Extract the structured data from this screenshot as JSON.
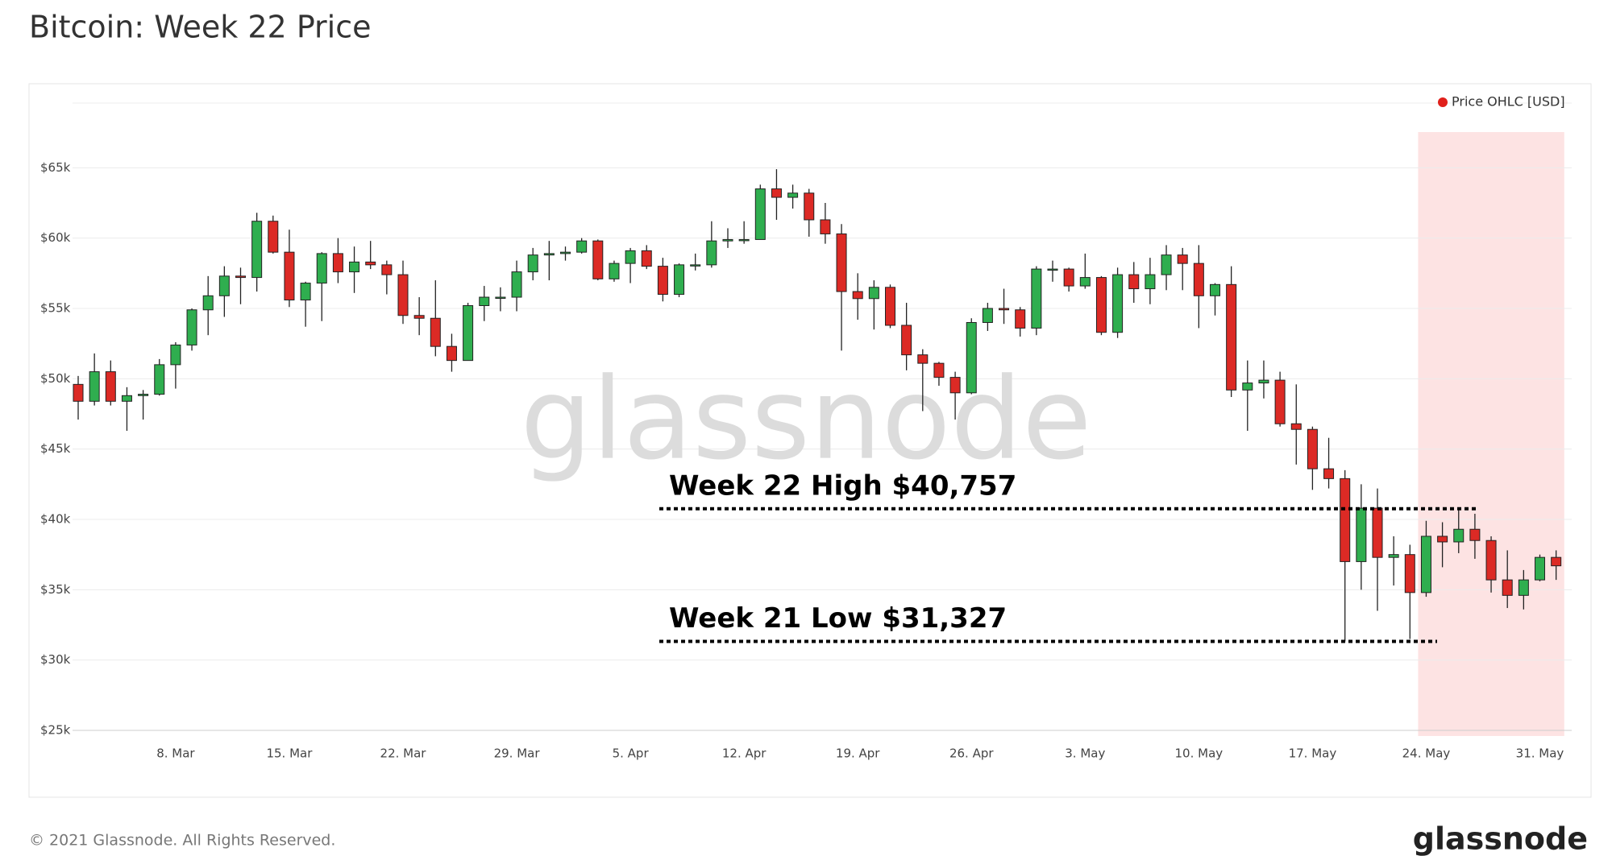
{
  "chart_data": {
    "type": "candlestick",
    "title": "Bitcoin: Week 22 Price",
    "categories": [
      null,
      null,
      null,
      null,
      null,
      null,
      "8. Mar",
      null,
      null,
      null,
      null,
      null,
      null,
      "15. Mar",
      null,
      null,
      null,
      null,
      null,
      null,
      "22. Mar",
      null,
      null,
      null,
      null,
      null,
      null,
      "29. Mar",
      null,
      null,
      null,
      null,
      null,
      null,
      "5. Apr",
      null,
      null,
      null,
      null,
      null,
      null,
      "12. Apr",
      null,
      null,
      null,
      null,
      null,
      null,
      "19. Apr",
      null,
      null,
      null,
      null,
      null,
      null,
      "26. Apr",
      null,
      null,
      null,
      null,
      null,
      null,
      "3. May",
      null,
      null,
      null,
      null,
      null,
      null,
      "10. May",
      null,
      null,
      null,
      null,
      null,
      null,
      "17. May",
      null,
      null,
      null,
      null,
      null,
      null,
      "24. May",
      null,
      null,
      null,
      null,
      null,
      null,
      "31. May",
      null
    ],
    "series": [
      {
        "name": "Price OHLC [USD]",
        "color": "#e0201b",
        "open": [
          49600,
          48400,
          50500,
          48400,
          48800,
          48900,
          51000,
          52400,
          54900,
          55900,
          57300,
          57200,
          61200,
          59000,
          55600,
          56800,
          58900,
          57600,
          58300,
          58100,
          57400,
          54500,
          54300,
          52300,
          51300,
          55200,
          55800,
          55800,
          57600,
          58800,
          58900,
          59000,
          59800,
          57100,
          58200,
          59100,
          58000,
          56000,
          58100,
          58100,
          59800,
          59900,
          59900,
          63500,
          62900,
          63200,
          61300,
          60300,
          56200,
          55700,
          56500,
          53800,
          51700,
          51100,
          50100,
          49000,
          54000,
          55000,
          54900,
          53600,
          57800,
          57800,
          56600,
          57200,
          53300,
          57400,
          56400,
          57400,
          58800,
          58200,
          55900,
          56700,
          49200,
          49700,
          49900,
          46800,
          46400,
          43600,
          42900,
          37000,
          40800,
          37300,
          37500,
          34800,
          38800,
          38400,
          39300,
          38500,
          35700,
          34600,
          35700,
          37300
        ],
        "high": [
          50200,
          51800,
          51300,
          49400,
          49200,
          51400,
          52600,
          55000,
          57300,
          58000,
          57900,
          61800,
          61600,
          60600,
          56900,
          59000,
          60000,
          59400,
          59800,
          58400,
          58400,
          55800,
          57000,
          53200,
          55400,
          56600,
          56500,
          58400,
          59300,
          59800,
          59400,
          60000,
          59900,
          58400,
          59300,
          59500,
          58600,
          58200,
          58900,
          61200,
          60700,
          61200,
          63800,
          64900,
          63800,
          63500,
          62500,
          61000,
          57500,
          57000,
          56700,
          55400,
          52100,
          51200,
          50500,
          54300,
          55400,
          56400,
          55100,
          58000,
          58400,
          57900,
          58900,
          57300,
          57900,
          58300,
          58600,
          59500,
          59300,
          59500,
          56800,
          58000,
          51300,
          51300,
          50500,
          49600,
          46600,
          45800,
          43500,
          42500,
          42200,
          38800,
          38200,
          39900,
          39800,
          40757,
          40400,
          38800,
          37800,
          36400,
          37500,
          37800
        ],
        "low": [
          47100,
          48100,
          48100,
          46300,
          47100,
          48800,
          49300,
          52000,
          53100,
          54400,
          55300,
          56200,
          58900,
          55100,
          53700,
          54100,
          56800,
          56100,
          57800,
          56000,
          53900,
          53100,
          51600,
          50500,
          51300,
          54100,
          54800,
          54800,
          57000,
          57000,
          58400,
          58900,
          57000,
          56900,
          56800,
          57800,
          55500,
          55800,
          57700,
          57900,
          59300,
          59600,
          59900,
          61300,
          62100,
          60100,
          59600,
          52000,
          54200,
          53500,
          53600,
          50600,
          47700,
          49500,
          47100,
          48900,
          53400,
          53900,
          53000,
          53100,
          56900,
          56200,
          56400,
          53100,
          52900,
          55400,
          55300,
          56300,
          56300,
          53600,
          54500,
          48700,
          46300,
          48600,
          46600,
          43900,
          42100,
          42200,
          31327,
          35000,
          33500,
          35300,
          31500,
          34500,
          36600,
          37600,
          37200,
          34800,
          33700,
          33600,
          35600,
          35700
        ],
        "close": [
          48400,
          50500,
          48400,
          48800,
          48900,
          51000,
          52400,
          54900,
          55900,
          57300,
          57200,
          61200,
          59000,
          55600,
          56800,
          58900,
          57600,
          58300,
          58100,
          57400,
          54500,
          54300,
          52300,
          51300,
          55200,
          55800,
          55800,
          57600,
          58800,
          58900,
          59000,
          59800,
          57100,
          58200,
          59100,
          58000,
          56000,
          58100,
          58100,
          59800,
          59900,
          59900,
          63500,
          62900,
          63200,
          61300,
          60300,
          56200,
          55700,
          56500,
          53800,
          51700,
          51100,
          50100,
          49000,
          54000,
          55000,
          54900,
          53600,
          57800,
          57800,
          56600,
          57200,
          53300,
          57400,
          56400,
          57400,
          58800,
          58200,
          55900,
          56700,
          49200,
          49700,
          49900,
          46800,
          46400,
          43600,
          42900,
          37000,
          40800,
          37300,
          37500,
          34800,
          38800,
          38400,
          39300,
          38500,
          35700,
          34600,
          35700,
          37300,
          36700
        ]
      }
    ],
    "up_color": "#2fae4f",
    "down_color": "#dc2a25",
    "highlight_color": "#fde3e3",
    "ylim": [
      24600,
      69600
    ],
    "yticks": [
      {
        "value": 25000,
        "label": "$25k"
      },
      {
        "value": 30000,
        "label": "$30k"
      },
      {
        "value": 35000,
        "label": "$35k"
      },
      {
        "value": 40000,
        "label": "$40k"
      },
      {
        "value": 45000,
        "label": "$45k"
      },
      {
        "value": 50000,
        "label": "$50k"
      },
      {
        "value": 55000,
        "label": "$55k"
      },
      {
        "value": 60000,
        "label": "$60k"
      },
      {
        "value": 65000,
        "label": "$65k"
      }
    ],
    "grid": true,
    "legend": "top-right",
    "annotations": [
      {
        "text": "Week 22 High $40,757",
        "value": 40757
      },
      {
        "text": "Week 21 Low $31,327",
        "value": 31327
      }
    ],
    "watermark": "glassnode"
  },
  "footer": {
    "copyright": "© 2021 Glassnode. All Rights Reserved.",
    "logo": "glassnode"
  }
}
